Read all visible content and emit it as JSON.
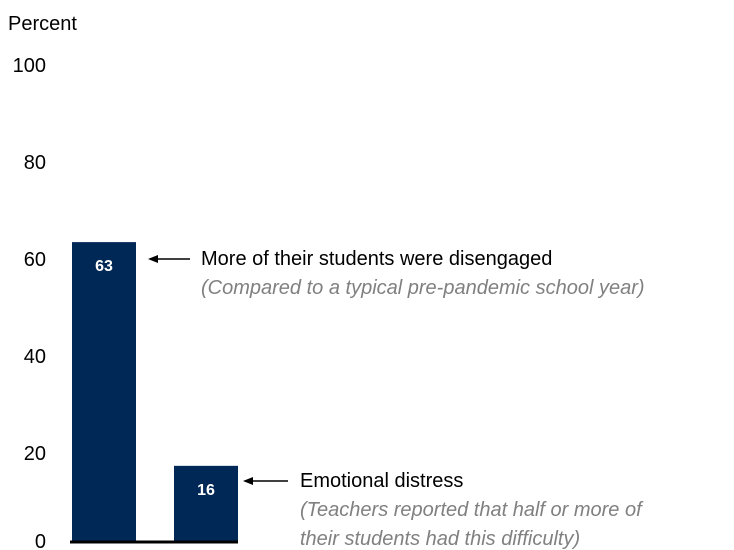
{
  "chart_data": {
    "type": "bar",
    "ylabel": "Percent",
    "ylim": [
      0,
      100
    ],
    "yticks": [
      "0",
      "20",
      "40",
      "60",
      "80",
      "100"
    ],
    "categories": [
      "More of their students were disengaged",
      "Emotional distress"
    ],
    "values": [
      63,
      16
    ],
    "value_labels": [
      "63",
      "16"
    ],
    "bar_color": "#002856",
    "annotations": [
      {
        "title": "More of their students were disengaged",
        "subtitle_lines": [
          "(Compared to a typical pre-pandemic school year)"
        ]
      },
      {
        "title": "Emotional distress",
        "subtitle_lines": [
          "(Teachers reported that half or more of",
          "their students had this difficulty)"
        ]
      }
    ],
    "grid": false
  }
}
